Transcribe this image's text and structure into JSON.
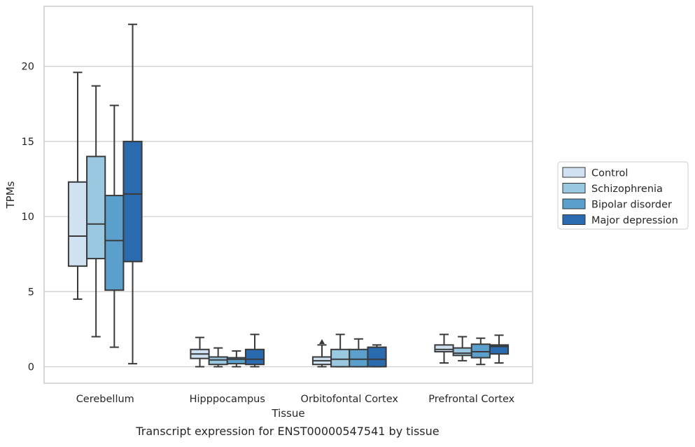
{
  "chart_data": {
    "type": "box",
    "title": "",
    "caption": "Transcript expression for ENST00000547541 by tissue",
    "xlabel": "Tissue",
    "ylabel": "TPMs",
    "ylim": [
      -1.1,
      24.0
    ],
    "yticks": [
      0,
      5,
      10,
      15,
      20
    ],
    "grid": "horizontal",
    "legend_position": "right",
    "categories": [
      "Cerebellum",
      "Hipppocampus",
      "Orbitofontal Cortex",
      "Prefrontal Cortex"
    ],
    "series": [
      {
        "name": "Control",
        "color": "#d0e1f2",
        "boxes": [
          {
            "whislo": 4.5,
            "q1": 6.7,
            "med": 8.7,
            "q3": 12.3,
            "whishi": 19.6,
            "fliers": []
          },
          {
            "whislo": 0.0,
            "q1": 0.55,
            "med": 0.85,
            "q3": 1.15,
            "whishi": 1.95,
            "fliers": []
          },
          {
            "whislo": 0.0,
            "q1": 0.15,
            "med": 0.4,
            "q3": 0.65,
            "whishi": 1.45,
            "fliers": [
              1.65
            ]
          },
          {
            "whislo": 0.25,
            "q1": 1.0,
            "med": 1.15,
            "q3": 1.45,
            "whishi": 2.15,
            "fliers": []
          }
        ]
      },
      {
        "name": "Schizophrenia",
        "color": "#9ac8e0",
        "boxes": [
          {
            "whislo": 2.0,
            "q1": 7.2,
            "med": 9.5,
            "q3": 14.0,
            "whishi": 18.7,
            "fliers": []
          },
          {
            "whislo": 0.0,
            "q1": 0.15,
            "med": 0.45,
            "q3": 0.65,
            "whishi": 1.25,
            "fliers": []
          },
          {
            "whislo": 0.0,
            "q1": 0.0,
            "med": 0.5,
            "q3": 1.15,
            "whishi": 2.15,
            "fliers": []
          },
          {
            "whislo": 0.4,
            "q1": 0.75,
            "med": 0.9,
            "q3": 1.25,
            "whishi": 2.0,
            "fliers": []
          }
        ]
      },
      {
        "name": "Bipolar disorder",
        "color": "#5b9fcc",
        "boxes": [
          {
            "whislo": 1.3,
            "q1": 5.1,
            "med": 8.4,
            "q3": 11.4,
            "whishi": 17.4,
            "fliers": []
          },
          {
            "whislo": 0.0,
            "q1": 0.2,
            "med": 0.5,
            "q3": 0.6,
            "whishi": 1.05,
            "fliers": []
          },
          {
            "whislo": 0.0,
            "q1": 0.0,
            "med": 0.5,
            "q3": 1.15,
            "whishi": 1.85,
            "fliers": []
          },
          {
            "whislo": 0.15,
            "q1": 0.6,
            "med": 1.0,
            "q3": 1.5,
            "whishi": 1.9,
            "fliers": []
          }
        ]
      },
      {
        "name": "Major depression",
        "color": "#2a6aae",
        "boxes": [
          {
            "whislo": 0.2,
            "q1": 7.0,
            "med": 11.5,
            "q3": 15.0,
            "whishi": 22.8,
            "fliers": []
          },
          {
            "whislo": 0.0,
            "q1": 0.15,
            "med": 0.5,
            "q3": 1.15,
            "whishi": 2.15,
            "fliers": []
          },
          {
            "whislo": 0.0,
            "q1": 0.0,
            "med": 0.5,
            "q3": 1.3,
            "whishi": 1.45,
            "fliers": []
          },
          {
            "whislo": 0.25,
            "q1": 0.85,
            "med": 1.35,
            "q3": 1.45,
            "whishi": 2.1,
            "fliers": []
          }
        ]
      }
    ]
  }
}
